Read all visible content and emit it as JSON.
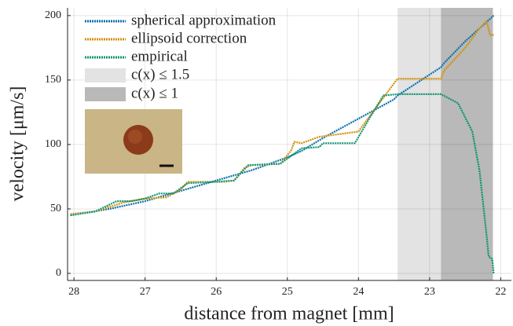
{
  "chart_data": {
    "type": "line",
    "xlabel": "distance from magnet [mm]",
    "ylabel": "velocity [μm/s]",
    "xlim": [
      28.09,
      21.85
    ],
    "ylim": [
      -5.5,
      206
    ],
    "xticks": [
      28,
      27,
      26,
      25,
      24,
      23,
      22
    ],
    "yticks": [
      0,
      50,
      100,
      150,
      200
    ],
    "grid": true,
    "legend": "top-left",
    "regions": [
      {
        "name": "c(x) ≤ 1.5",
        "color": "#e3e3e3",
        "xlim": [
          23.45,
          22.11
        ]
      },
      {
        "name": "c(x) ≤ 1",
        "color": "#b9b9b9",
        "xlim": [
          22.84,
          22.11
        ]
      }
    ],
    "series": [
      {
        "name": "spherical approximation",
        "color": "#0a6fab",
        "x": [
          28.05,
          27.5,
          27.0,
          26.5,
          26.0,
          25.5,
          25.0,
          24.8,
          24.5,
          24.0,
          23.5,
          23.45,
          22.84,
          22.8,
          22.5,
          22.1
        ],
        "values": [
          45,
          50,
          56,
          64,
          72,
          80,
          90,
          95,
          105,
          120,
          135,
          138,
          160,
          163,
          180,
          200
        ]
      },
      {
        "name": "ellipsoid correction",
        "color": "#d4900a",
        "x": [
          28.05,
          27.7,
          27.3,
          27.0,
          26.7,
          26.5,
          26.4,
          25.9,
          25.75,
          25.6,
          25.5,
          25.1,
          24.95,
          24.9,
          24.8,
          24.55,
          24.0,
          23.8,
          23.6,
          23.45,
          22.84,
          22.8,
          22.5,
          22.3,
          22.2,
          22.15,
          22.1
        ],
        "values": [
          46,
          48,
          55,
          58,
          59,
          65,
          71,
          71,
          72,
          82,
          84,
          85,
          95,
          102,
          101,
          106,
          110,
          125,
          140,
          151,
          151,
          157,
          175,
          190,
          196,
          185,
          185
        ]
      },
      {
        "name": "empirical",
        "color": "#0d9470",
        "x": [
          28.05,
          27.7,
          27.4,
          27.2,
          27.0,
          26.8,
          26.6,
          26.4,
          26.0,
          25.75,
          25.55,
          25.1,
          24.8,
          24.55,
          24.5,
          24.05,
          23.85,
          23.65,
          23.45,
          22.84,
          22.6,
          22.4,
          22.3,
          22.2,
          22.17,
          22.12,
          22.1
        ],
        "values": [
          45,
          48,
          56,
          56,
          58,
          62,
          62,
          70,
          71,
          72,
          84,
          85,
          97,
          98,
          101,
          101,
          120,
          138,
          139,
          139,
          132,
          110,
          80,
          30,
          13,
          11,
          0
        ]
      }
    ]
  }
}
